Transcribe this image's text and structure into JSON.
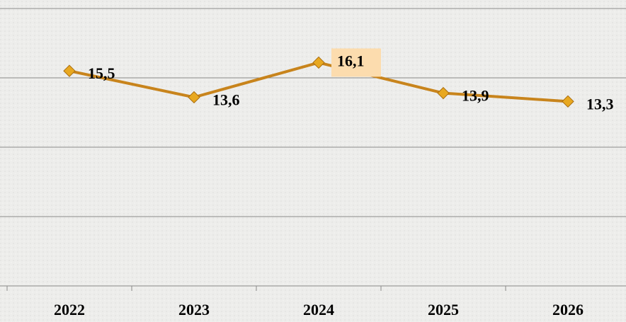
{
  "chart_data": {
    "type": "line",
    "categories": [
      "2022",
      "2023",
      "2024",
      "2025",
      "2026"
    ],
    "values": [
      15.5,
      13.6,
      16.1,
      13.9,
      13.3
    ],
    "value_labels": [
      "15,5",
      "13,6",
      "16,1",
      "13,9",
      "13,3"
    ],
    "color": "#c8841c",
    "ylim": [
      0,
      20
    ],
    "yticks": [
      0,
      5,
      10,
      15,
      20
    ],
    "grid": true
  }
}
